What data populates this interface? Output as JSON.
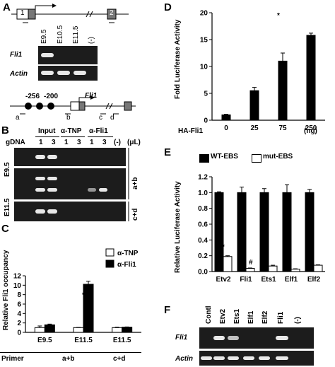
{
  "panelA": {
    "label": "A",
    "exon1": "1",
    "exon2": "2",
    "lanes": [
      "E9.5",
      "E10.5",
      "E11.5",
      "(-)"
    ],
    "gene_fli1": "Fli1",
    "gene_actin": "Actin",
    "site1": "-256",
    "site2": "-200",
    "promoter_gene": "Fli1",
    "primers": [
      "a",
      "b",
      "c",
      "d"
    ]
  },
  "panelB": {
    "label": "B",
    "head_input": "Input",
    "head_tnp": "α-TNP",
    "head_fli1": "α-Fli1",
    "gdna": "gDNA",
    "lanes": [
      "1",
      "3",
      "1",
      "3",
      "1",
      "3",
      "(-)",
      "(μL)"
    ],
    "row_e95": "E9.5",
    "row_e115": "E11.5",
    "ab": "a+b",
    "cd": "c+d"
  },
  "panelC": {
    "label": "C",
    "star": "*",
    "primer_label": "Primer",
    "group_labels": [
      "E9.5",
      "E11.5",
      "E11.5"
    ],
    "primer_groups": [
      "a+b",
      "c+d"
    ]
  },
  "panelD": {
    "label": "D",
    "star": "*",
    "row_label": "HA-Fli1",
    "unit": "(ng)"
  },
  "panelE": {
    "label": "E",
    "star": "*",
    "hash": "#"
  },
  "panelF": {
    "label": "F",
    "lanes": [
      "Contl",
      "Etv2",
      "Ets1",
      "Elf1",
      "Elf2",
      "Fli1",
      "(-)"
    ],
    "gene_fli1": "Fli1",
    "gene_actin": "Actin"
  },
  "chart_data": [
    {
      "type": "bar",
      "panel": "C",
      "ylabel": "Relative Fli1 occupancy",
      "categories": [
        "E9.5",
        "E11.5",
        "E11.5"
      ],
      "yticks": [
        "0",
        "2",
        "4",
        "6",
        "8",
        "10",
        "12"
      ],
      "ylim": [
        0,
        12
      ],
      "series": [
        {
          "name": "α-TNP",
          "color": "#ffffff",
          "values": [
            1.0,
            1.0,
            1.0
          ],
          "errors": [
            0.35,
            0.05,
            0.1
          ]
        },
        {
          "name": "α-Fli1",
          "color": "#000000",
          "values": [
            1.6,
            10.2,
            1.1
          ],
          "errors": [
            0.15,
            0.65,
            0.05
          ]
        }
      ]
    },
    {
      "type": "bar",
      "panel": "D",
      "ylabel": "Fold Luciferase Activity",
      "categories": [
        "0",
        "25",
        "75",
        "250"
      ],
      "yticks": [
        "0",
        "5",
        "10",
        "15",
        "20"
      ],
      "ylim": [
        0,
        20
      ],
      "values": [
        1.0,
        5.5,
        11.0,
        15.8
      ],
      "errors": [
        0.1,
        0.6,
        1.5,
        0.4
      ],
      "color": "#000000"
    },
    {
      "type": "bar",
      "panel": "E",
      "ylabel": "Relative Luciferase Activity",
      "categories": [
        "Etv2",
        "Fli1",
        "Ets1",
        "Elf1",
        "Elf2"
      ],
      "yticks": [
        "0.0",
        "0.2",
        "0.4",
        "0.6",
        "0.8",
        "1.0",
        "1.2"
      ],
      "ylim": [
        0,
        1.2
      ],
      "series": [
        {
          "name": "WT-EBS",
          "color": "#000000",
          "values": [
            1.0,
            1.0,
            1.0,
            1.0,
            1.0
          ],
          "errors": [
            0.01,
            0.07,
            0.05,
            0.1,
            0.04
          ]
        },
        {
          "name": "mut-EBS",
          "color": "#ffffff",
          "values": [
            0.19,
            0.04,
            0.07,
            0.03,
            0.08
          ],
          "errors": [
            0.01,
            0.005,
            0.01,
            0.005,
            0.005
          ]
        }
      ]
    }
  ]
}
